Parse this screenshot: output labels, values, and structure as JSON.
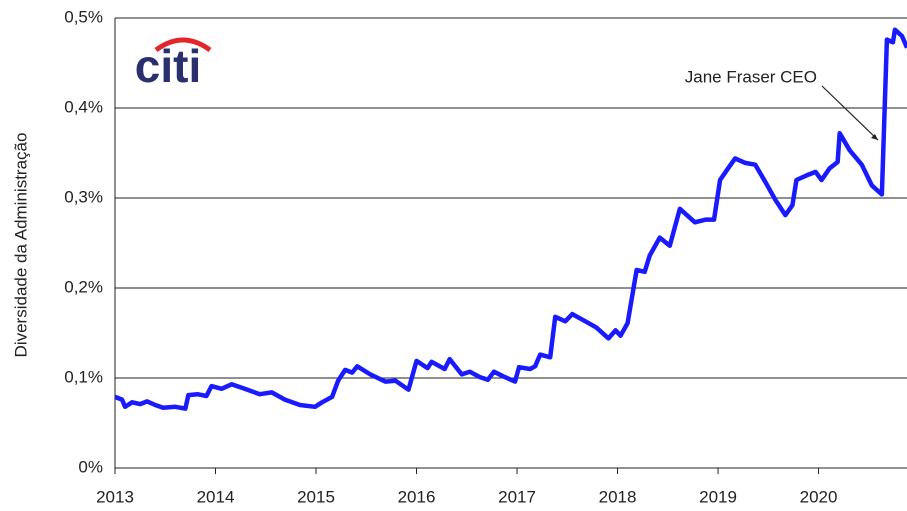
{
  "chart_data": {
    "type": "line",
    "logo": "citi",
    "y_label": "Diversidade da Administração",
    "annotation": "Jane Fraser CEO",
    "xlim": [
      2013,
      2020.88
    ],
    "xticks": [
      2013,
      2014,
      2015,
      2016,
      2017,
      2018,
      2019,
      2020
    ],
    "ylim": [
      0,
      0.5
    ],
    "yticks": [
      {
        "value": 0,
        "label": "0%"
      },
      {
        "value": 0.1,
        "label": "0,1%"
      },
      {
        "value": 0.2,
        "label": "0,2%"
      },
      {
        "value": 0.3,
        "label": "0,3%"
      },
      {
        "value": 0.4,
        "label": "0,4%"
      },
      {
        "value": 0.5,
        "label": "0,5%"
      }
    ],
    "grid": true,
    "x": [
      2013.0,
      2013.07,
      2013.1,
      2013.17,
      2013.25,
      2013.32,
      2013.4,
      2013.48,
      2013.6,
      2013.7,
      2013.73,
      2013.82,
      2013.91,
      2013.96,
      2014.06,
      2014.16,
      2014.29,
      2014.44,
      2014.56,
      2014.69,
      2014.84,
      2014.99,
      2015.06,
      2015.16,
      2015.22,
      2015.29,
      2015.36,
      2015.41,
      2015.54,
      2015.69,
      2015.79,
      2015.92,
      2016.0,
      2016.11,
      2016.15,
      2016.28,
      2016.33,
      2016.45,
      2016.53,
      2016.63,
      2016.71,
      2016.77,
      2016.86,
      2016.98,
      2017.02,
      2017.13,
      2017.18,
      2017.23,
      2017.33,
      2017.38,
      2017.48,
      2017.55,
      2017.68,
      2017.79,
      2017.91,
      2017.98,
      2018.03,
      2018.1,
      2018.19,
      2018.27,
      2018.32,
      2018.42,
      2018.52,
      2018.62,
      2018.77,
      2018.88,
      2018.96,
      2019.02,
      2019.1,
      2019.17,
      2019.27,
      2019.37,
      2019.47,
      2019.57,
      2019.67,
      2019.74,
      2019.78,
      2019.9,
      2019.97,
      2020.03,
      2020.11,
      2020.19,
      2020.21,
      2020.31,
      2020.43,
      2020.53,
      2020.63,
      2020.68,
      2020.74,
      2020.76,
      2020.83,
      2020.88
    ],
    "series": [
      {
        "name": "Diversidade da Administração",
        "color": "#1a1aff",
        "values": [
          0.079,
          0.076,
          0.068,
          0.073,
          0.071,
          0.074,
          0.07,
          0.067,
          0.068,
          0.066,
          0.081,
          0.082,
          0.08,
          0.091,
          0.088,
          0.093,
          0.088,
          0.082,
          0.084,
          0.076,
          0.07,
          0.068,
          0.073,
          0.079,
          0.097,
          0.109,
          0.106,
          0.113,
          0.104,
          0.096,
          0.097,
          0.087,
          0.119,
          0.111,
          0.118,
          0.11,
          0.121,
          0.104,
          0.107,
          0.101,
          0.098,
          0.107,
          0.102,
          0.096,
          0.112,
          0.11,
          0.113,
          0.126,
          0.123,
          0.168,
          0.163,
          0.171,
          0.163,
          0.156,
          0.144,
          0.153,
          0.147,
          0.161,
          0.22,
          0.218,
          0.236,
          0.256,
          0.247,
          0.288,
          0.273,
          0.276,
          0.276,
          0.32,
          0.333,
          0.344,
          0.339,
          0.337,
          0.318,
          0.298,
          0.281,
          0.292,
          0.32,
          0.326,
          0.329,
          0.32,
          0.333,
          0.34,
          0.372,
          0.353,
          0.337,
          0.314,
          0.304,
          0.476,
          0.473,
          0.487,
          0.48,
          0.467
        ]
      }
    ]
  }
}
